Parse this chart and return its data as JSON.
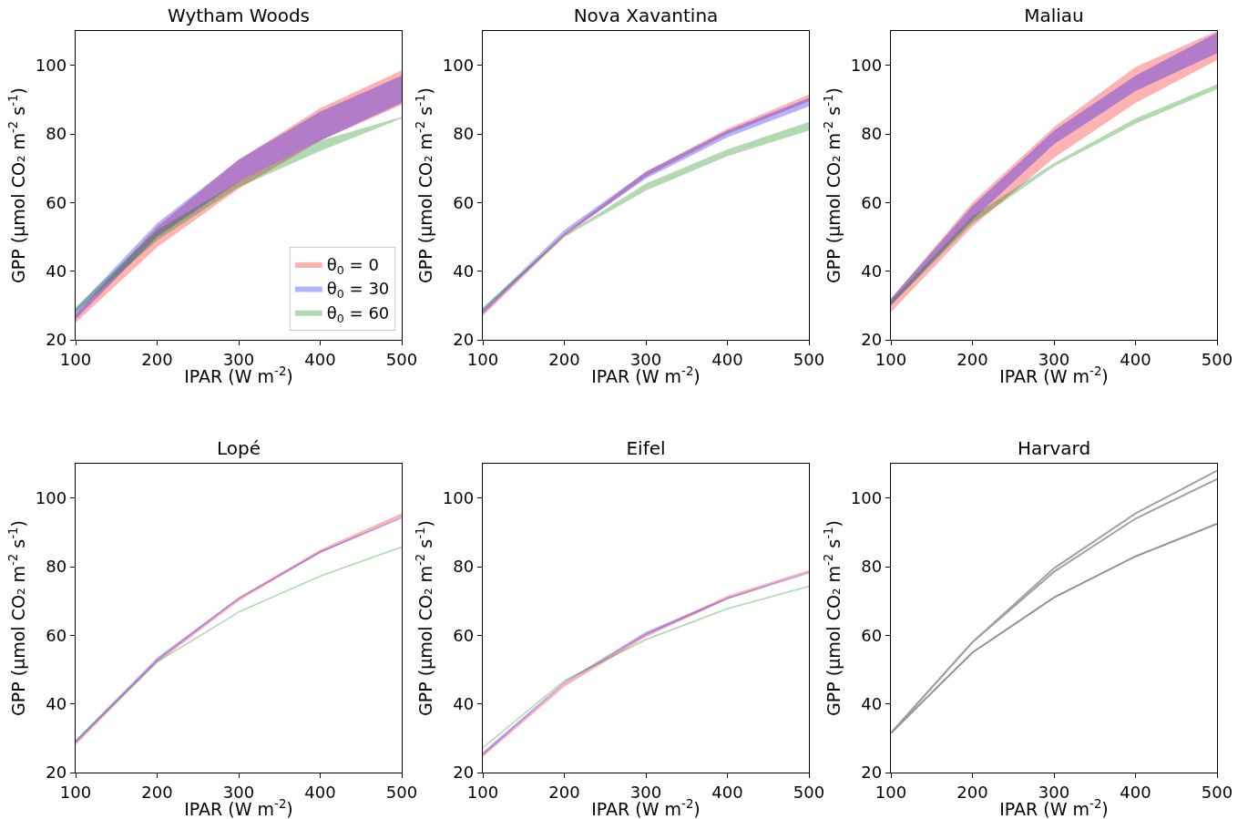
{
  "chart_data": [
    {
      "type": "area",
      "title": "Wytham Woods",
      "xlabel": "IPAR (W m$^{-2}$)",
      "ylabel": "GPP (μmol CO₂ m$^{-2}$ s$^{-1}$)",
      "x": [
        100,
        200,
        300,
        400,
        500
      ],
      "xlim": [
        100,
        500
      ],
      "ylim": [
        20,
        110
      ],
      "xticks": [
        100,
        200,
        300,
        400,
        500
      ],
      "yticks": [
        20,
        40,
        60,
        80,
        100
      ],
      "grid": false,
      "legend": "bottom right",
      "series": [
        {
          "name": "θ$_{0}$ = 0",
          "color": "#ff0000",
          "values": [
            null,
            null,
            null,
            null,
            null
          ],
          "upper": [
            27.5,
            53,
            72.5,
            87.5,
            98.5
          ],
          "lower": [
            25,
            47,
            64,
            78,
            88.5
          ]
        },
        {
          "name": "θ$_{0}$ = 30",
          "color": "#0000ff",
          "values": [
            null,
            null,
            null,
            null,
            null
          ],
          "upper": [
            29,
            54,
            72.5,
            86.5,
            97
          ],
          "lower": [
            26,
            50,
            66,
            78,
            89
          ]
        },
        {
          "name": "θ$_{0}$ = 60",
          "color": "#008000",
          "values": [
            null,
            null,
            null,
            null,
            null
          ],
          "upper": [
            29.5,
            52,
            66,
            78,
            85
          ],
          "lower": [
            28,
            49,
            64.5,
            75,
            84.5
          ]
        }
      ]
    },
    {
      "type": "area",
      "title": "Nova Xavantina",
      "xlabel": "IPAR (W m$^{-2}$)",
      "ylabel": "GPP (μmol CO₂ m$^{-2}$ s$^{-1}$)",
      "x": [
        100,
        200,
        300,
        400,
        500
      ],
      "xlim": [
        100,
        500
      ],
      "ylim": [
        20,
        110
      ],
      "xticks": [
        100,
        200,
        300,
        400,
        500
      ],
      "yticks": [
        20,
        40,
        60,
        80,
        100
      ],
      "grid": false,
      "series": [
        {
          "color": "#ff0000",
          "values": [
            null,
            null,
            null,
            null,
            null
          ],
          "upper": [
            28.5,
            51,
            69,
            81.5,
            91.5
          ],
          "lower": [
            27,
            50,
            67.5,
            80,
            89.5
          ]
        },
        {
          "color": "#0000ff",
          "values": [
            null,
            null,
            null,
            null,
            null
          ],
          "upper": [
            29,
            52,
            69,
            81,
            90.5
          ],
          "lower": [
            27.5,
            50.5,
            67,
            79,
            88
          ]
        },
        {
          "color": "#008000",
          "values": [
            null,
            null,
            null,
            null,
            null
          ],
          "upper": [
            29.5,
            50.5,
            65.5,
            75.5,
            83.5
          ],
          "lower": [
            28.5,
            50,
            63.5,
            73.5,
            81
          ]
        }
      ]
    },
    {
      "type": "area",
      "title": "Maliau",
      "xlabel": "IPAR (W m$^{-2}$)",
      "ylabel": "GPP (μmol CO₂ m$^{-2}$ s$^{-1}$)",
      "x": [
        100,
        200,
        300,
        400,
        500
      ],
      "xlim": [
        100,
        500
      ],
      "ylim": [
        20,
        110
      ],
      "xticks": [
        100,
        200,
        300,
        400,
        500
      ],
      "yticks": [
        20,
        40,
        60,
        80,
        100
      ],
      "grid": false,
      "series": [
        {
          "color": "#ff0000",
          "values": [
            null,
            null,
            null,
            null,
            null
          ],
          "upper": [
            32,
            60,
            82,
            99.5,
            110
          ],
          "lower": [
            28,
            53,
            73,
            89,
            101.5
          ]
        },
        {
          "color": "#0000ff",
          "values": [
            null,
            null,
            null,
            null,
            null
          ],
          "upper": [
            32,
            59,
            81,
            97,
            109.5
          ],
          "lower": [
            30,
            55,
            77,
            92.5,
            103.5
          ]
        },
        {
          "color": "#008000",
          "values": [
            null,
            null,
            null,
            null,
            null
          ],
          "upper": [
            31.5,
            56,
            71.5,
            84.5,
            94.5
          ],
          "lower": [
            30,
            54,
            70.5,
            83,
            93
          ]
        }
      ]
    },
    {
      "type": "area",
      "title": "Lopé",
      "xlabel": "IPAR (W m$^{-2}$)",
      "ylabel": "GPP (μmol CO₂ m$^{-2}$ s$^{-1}$)",
      "x": [
        100,
        200,
        300,
        400,
        500
      ],
      "xlim": [
        100,
        500
      ],
      "ylim": [
        20,
        110
      ],
      "xticks": [
        100,
        200,
        300,
        400,
        500
      ],
      "yticks": [
        20,
        40,
        60,
        80,
        100
      ],
      "grid": false,
      "series": [
        {
          "color": "#ff0000",
          "values": [
            null,
            null,
            null,
            null,
            null
          ],
          "upper": [
            29,
            53,
            71,
            85,
            95.5
          ],
          "lower": [
            28,
            52,
            70,
            84,
            94.5
          ]
        },
        {
          "color": "#0000ff",
          "values": [
            null,
            null,
            null,
            null,
            null
          ],
          "upper": [
            29.5,
            53.5,
            71,
            84.5,
            94.5
          ],
          "lower": [
            28.5,
            52.5,
            70.5,
            84,
            94
          ]
        },
        {
          "color": "#008000",
          "values": [
            null,
            null,
            null,
            null,
            null
          ],
          "upper": [
            29.5,
            52.5,
            67,
            77.5,
            86
          ],
          "lower": [
            29,
            52,
            66.5,
            77,
            85.5
          ]
        }
      ]
    },
    {
      "type": "area",
      "title": "Eifel",
      "xlabel": "IPAR (W m$^{-2}$)",
      "ylabel": "GPP (μmol CO₂ m$^{-2}$ s$^{-1}$)",
      "x": [
        100,
        200,
        300,
        400,
        500
      ],
      "xlim": [
        100,
        500
      ],
      "ylim": [
        20,
        110
      ],
      "xticks": [
        100,
        200,
        300,
        400,
        500
      ],
      "yticks": [
        20,
        40,
        60,
        80,
        100
      ],
      "grid": false,
      "series": [
        {
          "color": "#ff0000",
          "values": [
            null,
            null,
            null,
            null,
            null
          ],
          "upper": [
            25.5,
            46,
            60.5,
            71.5,
            79
          ],
          "lower": [
            24.5,
            45,
            59.5,
            70.5,
            78.5
          ]
        },
        {
          "color": "#0000ff",
          "values": [
            null,
            null,
            null,
            null,
            null
          ],
          "upper": [
            26,
            46.5,
            61,
            71,
            78.5
          ],
          "lower": [
            25,
            46,
            60,
            70.5,
            78
          ]
        },
        {
          "color": "#008000",
          "values": [
            null,
            null,
            null,
            null,
            null
          ],
          "upper": [
            27.5,
            47,
            59,
            68,
            74.5
          ],
          "lower": [
            27,
            46.5,
            58.5,
            67.5,
            74
          ]
        }
      ]
    },
    {
      "type": "line",
      "title": "Harvard",
      "xlabel": "IPAR (W m$^{-2}$)",
      "ylabel": "GPP (μmol CO₂ m$^{-2}$ s$^{-1}$)",
      "x": [
        100,
        200,
        300,
        400,
        500
      ],
      "xlim": [
        100,
        500
      ],
      "ylim": [
        20,
        110
      ],
      "xticks": [
        100,
        200,
        300,
        400,
        500
      ],
      "yticks": [
        20,
        40,
        60,
        80,
        100
      ],
      "grid": false,
      "series": [
        {
          "color": "#a8a0a0",
          "values": [
            31.5,
            58,
            79.5,
            95.5,
            108
          ]
        },
        {
          "color": "#a0a0a8",
          "values": [
            31.5,
            58,
            78.5,
            94,
            105.5
          ]
        },
        {
          "color": "#8c988c",
          "values": [
            31.5,
            55,
            71,
            83,
            92.5
          ]
        }
      ]
    }
  ]
}
